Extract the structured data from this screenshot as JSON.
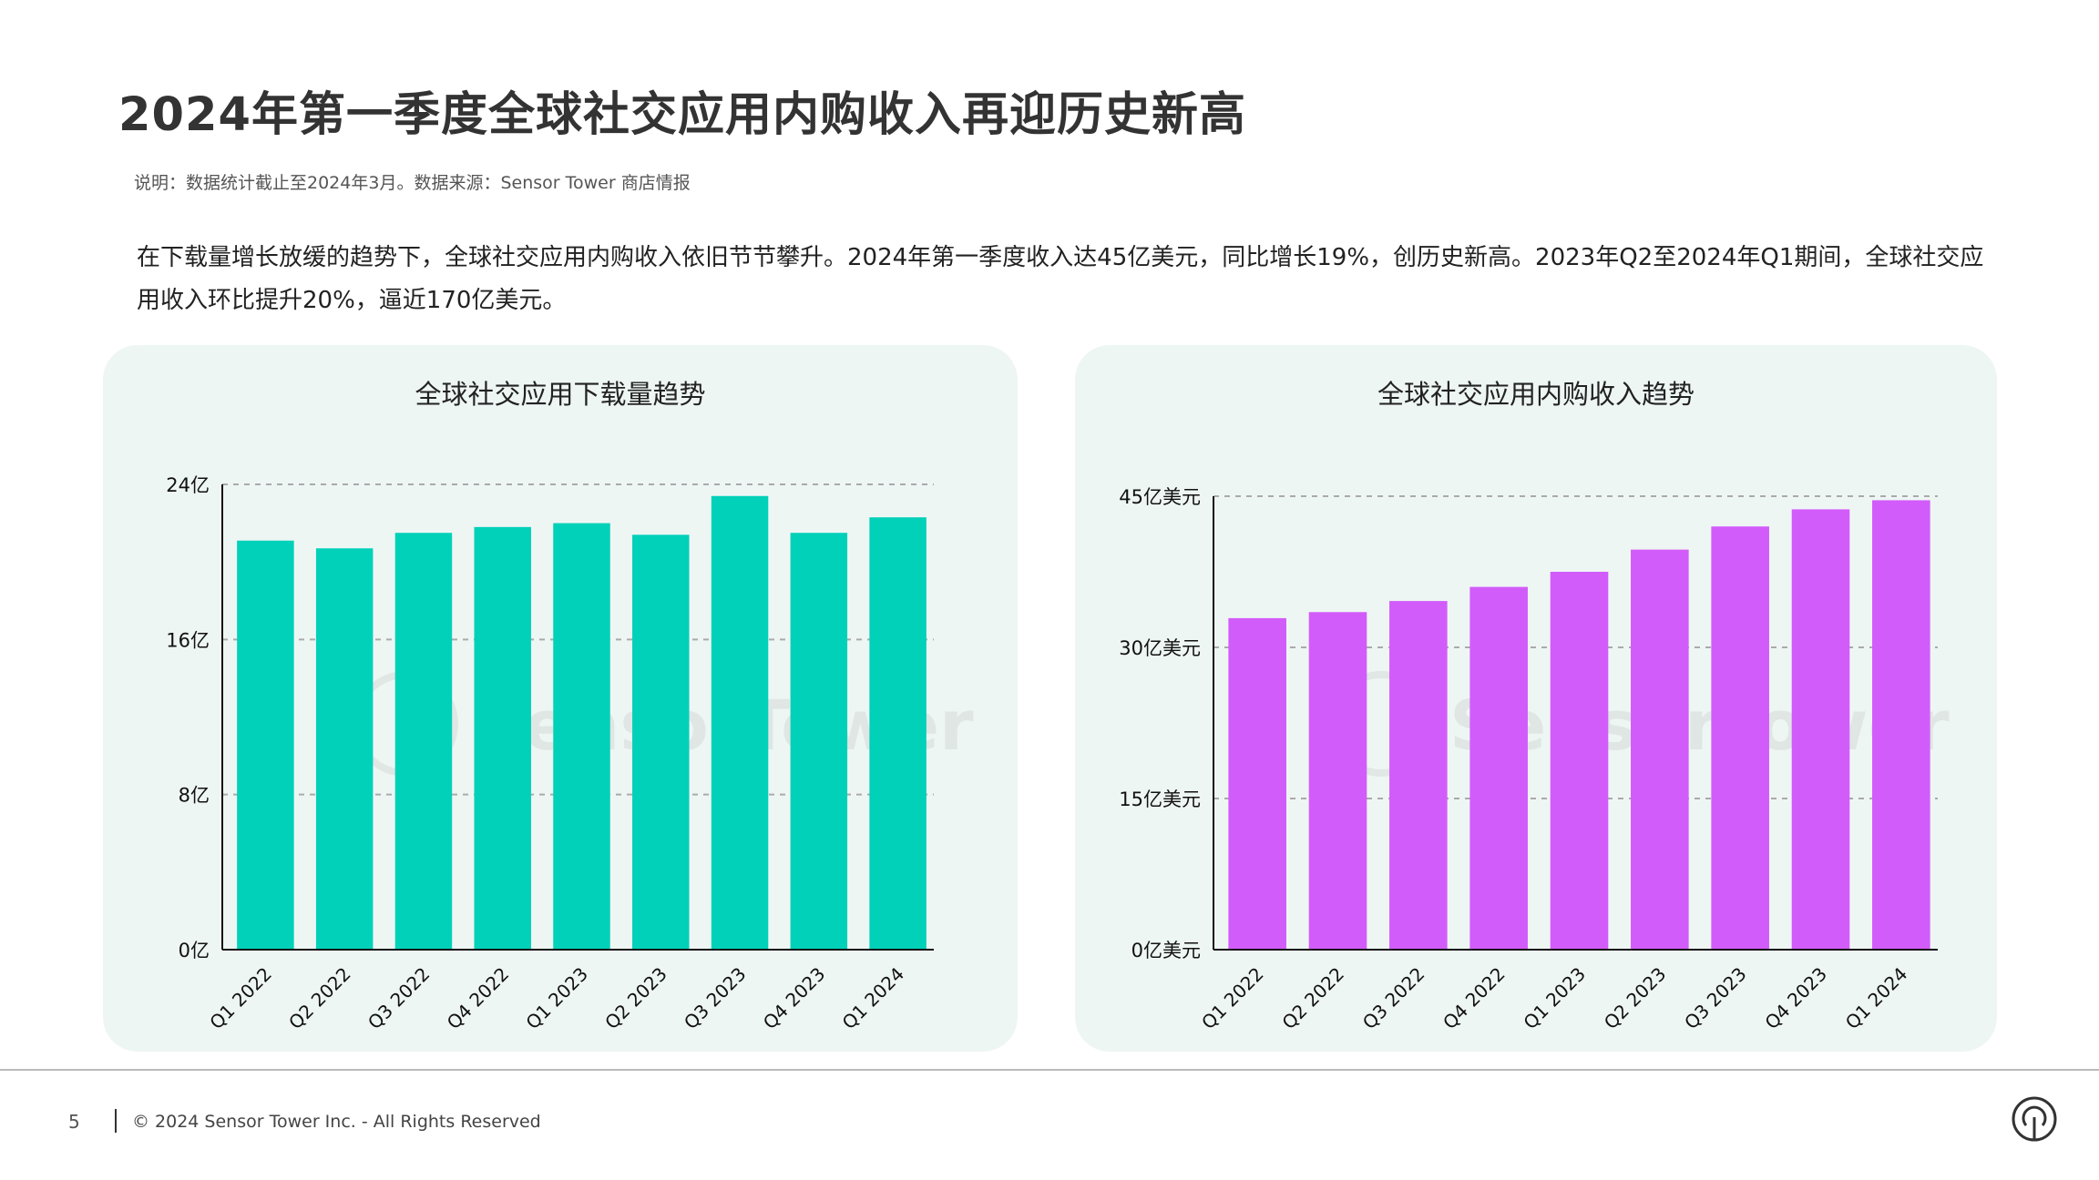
{
  "title": "2024年第一季度全球社交应用内购收入再迎历史新高",
  "note": "说明：数据统计截止至2024年3月。数据来源：Sensor Tower 商店情报",
  "paragraph": "在下载量增长放缓的趋势下，全球社交应用内购收入依旧节节攀升。2024年第一季度收入达45亿美元，同比增长19%，创历史新高。2023年Q2至2024年Q1期间，全球社交应用收入环比提升20%，逼近170亿美元。",
  "watermark": "SensorTower",
  "footer": {
    "page_number": "5",
    "copyright": "© 2024 Sensor Tower Inc. - All Rights Reserved",
    "logo_icon": "sensor-tower-logo-icon"
  },
  "chart_data": [
    {
      "type": "bar",
      "title": "全球社交应用下载量趋势",
      "categories": [
        "Q1 2022",
        "Q2 2022",
        "Q3 2022",
        "Q4 2022",
        "Q1 2023",
        "Q2 2023",
        "Q3 2023",
        "Q4 2023",
        "Q1 2024"
      ],
      "values": [
        21.1,
        20.7,
        21.5,
        21.8,
        22.0,
        21.4,
        23.4,
        21.5,
        22.3
      ],
      "ylim": [
        0,
        24
      ],
      "yticks": [
        0,
        8,
        16,
        24
      ],
      "ytick_labels": [
        "0亿",
        "8亿",
        "16亿",
        "24亿"
      ],
      "grid": true,
      "color": "#00d1b8"
    },
    {
      "type": "bar",
      "title": "全球社交应用内购收入趋势",
      "categories": [
        "Q1 2022",
        "Q2 2022",
        "Q3 2022",
        "Q4 2022",
        "Q1 2023",
        "Q2 2023",
        "Q3 2023",
        "Q4 2023",
        "Q1 2024"
      ],
      "values": [
        32.9,
        33.5,
        34.6,
        36.0,
        37.5,
        39.7,
        42.0,
        43.7,
        44.6
      ],
      "ylim": [
        0,
        45
      ],
      "yticks": [
        0,
        15,
        30,
        45
      ],
      "ytick_labels": [
        "0亿美元",
        "15亿美元",
        "30亿美元",
        "45亿美元"
      ],
      "grid": true,
      "color": "#d25cfa"
    }
  ]
}
